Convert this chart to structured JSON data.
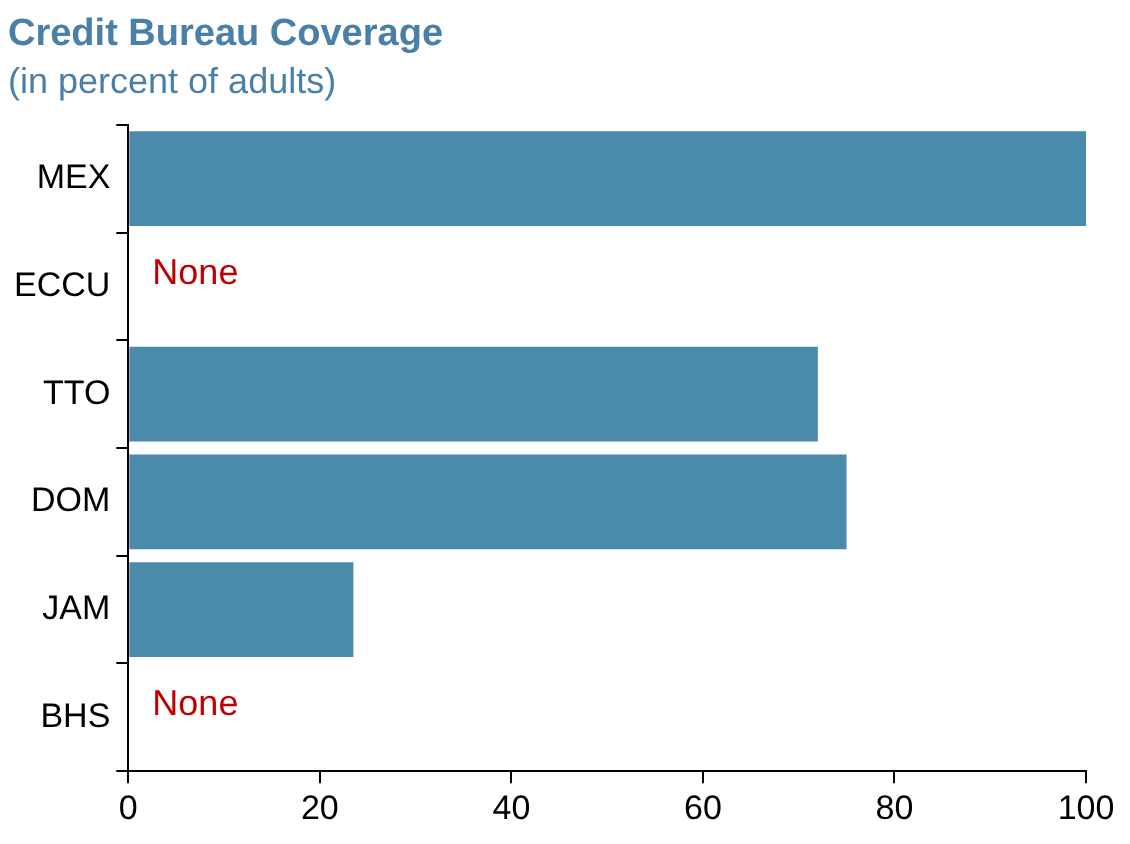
{
  "chart_data": {
    "type": "bar",
    "orientation": "horizontal",
    "title": "Credit Bureau Coverage",
    "subtitle": "(in percent of adults)",
    "categories": [
      "MEX",
      "ECCU",
      "TTO",
      "DOM",
      "JAM",
      "BHS"
    ],
    "values": [
      100,
      null,
      72,
      75,
      23.5,
      null
    ],
    "color": "#4a8aaa",
    "xlim": [
      0,
      100
    ],
    "xticks": [
      0,
      20,
      40,
      60,
      80,
      100
    ],
    "grid": false,
    "legend": false,
    "annotations": [
      "None",
      "None"
    ]
  }
}
